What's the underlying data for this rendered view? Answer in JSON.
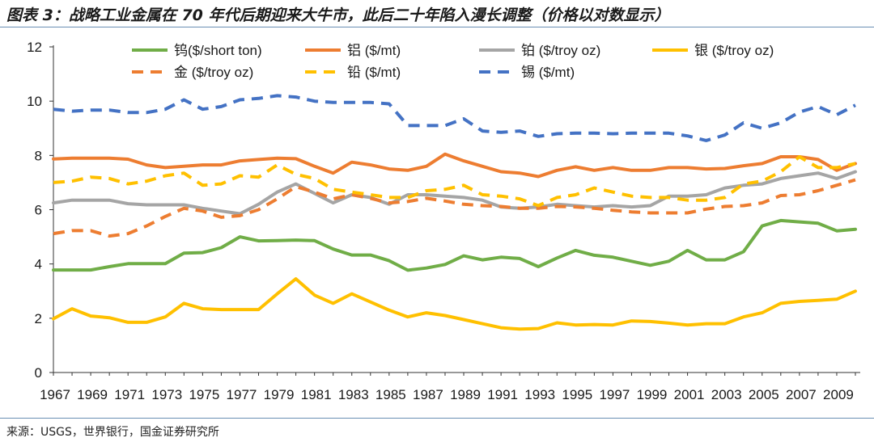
{
  "title": "图表 3：战略工业金属在 70 年代后期迎来大牛市，此后二十年陷入漫长调整（价格以对数显示）",
  "source": "来源：USGS，世界银行，国金证券研究所",
  "chart_data": {
    "type": "line",
    "title": "图表 3：战略工业金属在 70 年代后期迎来大牛市，此后二十年陷入漫长调整（价格以对数显示）",
    "xlabel": "",
    "ylabel": "",
    "x": [
      1967,
      1968,
      1969,
      1970,
      1971,
      1972,
      1973,
      1974,
      1975,
      1976,
      1977,
      1978,
      1979,
      1980,
      1981,
      1982,
      1983,
      1984,
      1985,
      1986,
      1987,
      1988,
      1989,
      1990,
      1991,
      1992,
      1993,
      1994,
      1995,
      1996,
      1997,
      1998,
      1999,
      2000,
      2001,
      2002,
      2003,
      2004,
      2005,
      2006,
      2007,
      2008,
      2009,
      2010
    ],
    "xticks": [
      "1967",
      "1969",
      "1971",
      "1973",
      "1975",
      "1977",
      "1979",
      "1981",
      "1983",
      "1985",
      "1987",
      "1989",
      "1991",
      "1993",
      "1995",
      "1997",
      "1999",
      "2001",
      "2003",
      "2005",
      "2007",
      "2009"
    ],
    "ylim": [
      0,
      12
    ],
    "yticks": [
      "0",
      "2",
      "4",
      "6",
      "8",
      "10",
      "12"
    ],
    "grid": false,
    "legend_position": "top",
    "series": [
      {
        "name": "钨($/short ton)",
        "color": "#70ad47",
        "dash": false,
        "values": [
          3.78,
          3.78,
          3.78,
          3.9,
          4.01,
          4.01,
          4.01,
          4.4,
          4.42,
          4.6,
          5.0,
          4.85,
          4.86,
          4.88,
          4.86,
          4.55,
          4.33,
          4.33,
          4.12,
          3.77,
          3.85,
          3.98,
          4.3,
          4.15,
          4.25,
          4.2,
          3.9,
          4.22,
          4.5,
          4.32,
          4.25,
          4.1,
          3.95,
          4.1,
          4.5,
          4.15,
          4.15,
          4.45,
          5.4,
          5.6,
          5.55,
          5.5,
          5.22,
          5.28
        ]
      },
      {
        "name": "铝 ($/mt)",
        "color": "#ed7d31",
        "dash": false,
        "values": [
          7.87,
          7.9,
          7.9,
          7.9,
          7.86,
          7.65,
          7.55,
          7.6,
          7.65,
          7.65,
          7.8,
          7.85,
          7.9,
          7.88,
          7.6,
          7.35,
          7.75,
          7.65,
          7.5,
          7.45,
          7.6,
          8.05,
          7.8,
          7.6,
          7.4,
          7.35,
          7.22,
          7.45,
          7.58,
          7.45,
          7.55,
          7.45,
          7.45,
          7.55,
          7.55,
          7.5,
          7.52,
          7.62,
          7.7,
          7.95,
          7.95,
          7.85,
          7.45,
          7.7
        ]
      },
      {
        "name": "铂 ($/troy oz)",
        "color": "#a5a5a5",
        "dash": false,
        "values": [
          6.25,
          6.35,
          6.35,
          6.35,
          6.22,
          6.18,
          6.18,
          6.18,
          6.05,
          5.95,
          5.85,
          6.2,
          6.65,
          6.95,
          6.6,
          6.25,
          6.55,
          6.45,
          6.2,
          6.55,
          6.55,
          6.5,
          6.45,
          6.35,
          6.1,
          6.05,
          6.1,
          6.2,
          6.15,
          6.1,
          6.15,
          6.1,
          6.15,
          6.5,
          6.5,
          6.55,
          6.8,
          6.9,
          6.95,
          7.15,
          7.25,
          7.35,
          7.15,
          7.4
        ]
      },
      {
        "name": "银 ($/troy oz)",
        "color": "#ffc000",
        "dash": false,
        "values": [
          1.98,
          2.35,
          2.08,
          2.02,
          1.85,
          1.85,
          2.05,
          2.55,
          2.35,
          2.32,
          2.32,
          2.32,
          2.9,
          3.45,
          2.85,
          2.55,
          2.9,
          2.6,
          2.3,
          2.05,
          2.2,
          2.1,
          1.95,
          1.8,
          1.65,
          1.6,
          1.62,
          1.83,
          1.75,
          1.77,
          1.75,
          1.9,
          1.88,
          1.82,
          1.75,
          1.8,
          1.8,
          2.05,
          2.2,
          2.55,
          2.62,
          2.66,
          2.7,
          3.0
        ]
      },
      {
        "name": "金 ($/troy oz)",
        "color": "#ed7d31",
        "dash": true,
        "values": [
          5.12,
          5.23,
          5.23,
          5.03,
          5.12,
          5.4,
          5.75,
          6.05,
          5.95,
          5.72,
          5.78,
          6.0,
          6.4,
          6.85,
          6.65,
          6.4,
          6.55,
          6.42,
          6.25,
          6.3,
          6.42,
          6.32,
          6.2,
          6.15,
          6.12,
          6.05,
          6.05,
          6.12,
          6.1,
          6.05,
          5.98,
          5.92,
          5.88,
          5.88,
          5.88,
          6.02,
          6.12,
          6.15,
          6.25,
          6.52,
          6.55,
          6.7,
          6.9,
          7.1
        ]
      },
      {
        "name": "铅 ($/mt)",
        "color": "#ffc000",
        "dash": true,
        "values": [
          7.0,
          7.05,
          7.2,
          7.15,
          6.95,
          7.05,
          7.25,
          7.35,
          6.9,
          6.95,
          7.25,
          7.2,
          7.65,
          7.3,
          7.15,
          6.75,
          6.65,
          6.55,
          6.45,
          6.45,
          6.7,
          6.75,
          6.9,
          6.55,
          6.5,
          6.4,
          6.15,
          6.45,
          6.55,
          6.8,
          6.65,
          6.5,
          6.45,
          6.45,
          6.35,
          6.35,
          6.45,
          6.95,
          7.05,
          7.4,
          7.95,
          7.55,
          7.55,
          7.7
        ]
      },
      {
        "name": "锡 ($/mt)",
        "color": "#4472c4",
        "dash": true,
        "values": [
          9.7,
          9.63,
          9.67,
          9.67,
          9.58,
          9.58,
          9.7,
          10.05,
          9.7,
          9.8,
          10.05,
          10.1,
          10.2,
          10.15,
          10.0,
          9.95,
          9.95,
          9.95,
          9.9,
          9.1,
          9.1,
          9.1,
          9.35,
          8.9,
          8.85,
          8.9,
          8.7,
          8.8,
          8.82,
          8.82,
          8.8,
          8.82,
          8.82,
          8.82,
          8.72,
          8.55,
          8.75,
          9.2,
          9.0,
          9.2,
          9.6,
          9.8,
          9.5,
          9.85
        ]
      }
    ]
  }
}
